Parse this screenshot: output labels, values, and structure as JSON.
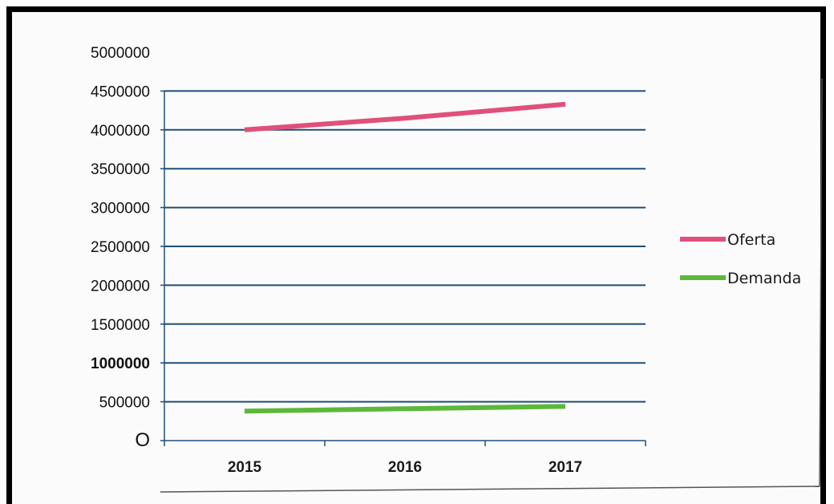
{
  "chart_data": {
    "type": "line",
    "title": "",
    "xlabel": "",
    "ylabel": "",
    "categories": [
      "2015",
      "2016",
      "2017"
    ],
    "ylim": [
      0,
      5000000
    ],
    "yticks": [
      "O",
      "500000",
      "1000000",
      "1500000",
      "2000000",
      "2500000",
      "3000000",
      "3500000",
      "4000000",
      "4500000",
      "5000000"
    ],
    "grid": true,
    "legend_position": "right",
    "series": [
      {
        "name": "Oferta",
        "values": [
          4000000,
          4150000,
          4330000
        ],
        "color": "#e0507a"
      },
      {
        "name": "Demanda",
        "values": [
          380000,
          410000,
          440000
        ],
        "color": "#5cb83a"
      }
    ]
  }
}
